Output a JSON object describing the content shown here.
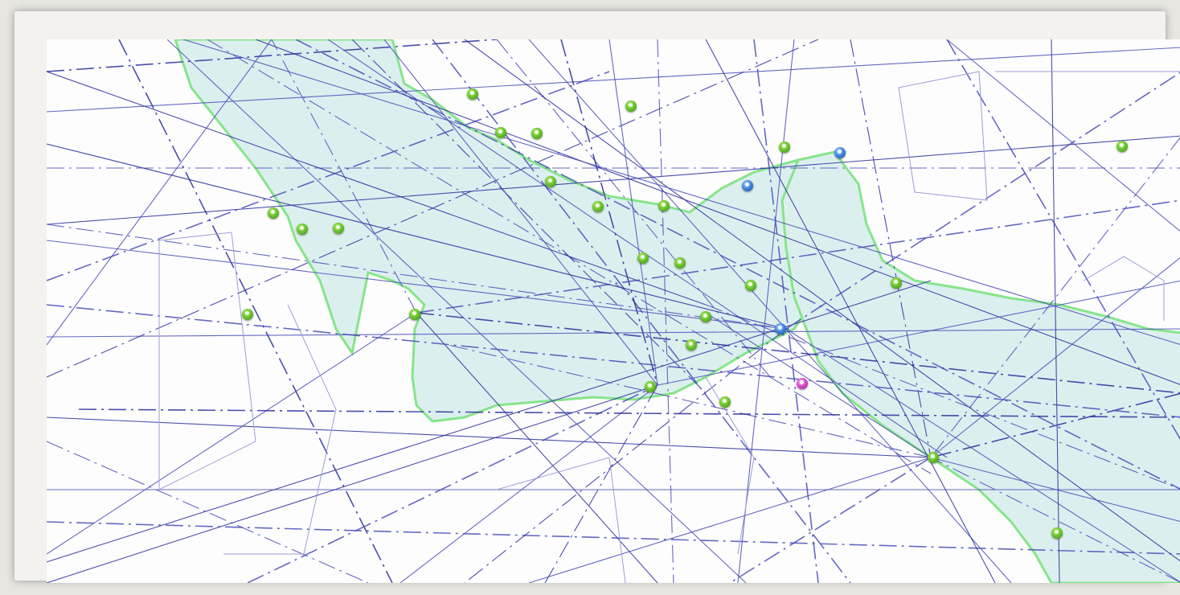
{
  "map": {
    "colors": {
      "land": "#dcefef",
      "coast": "#86e58a",
      "airway": "#4a4fb8",
      "airway_heavy": "#2b2f9e",
      "boundary": "#9a9fd6",
      "marker_green": "#5ab82a",
      "marker_blue": "#3f86e0",
      "marker_magenta": "#d84bd0"
    },
    "markers": [
      {
        "type": "green"
      },
      {
        "type": "green"
      },
      {
        "type": "green"
      },
      {
        "type": "green"
      },
      {
        "type": "green"
      },
      {
        "type": "green"
      },
      {
        "type": "green"
      },
      {
        "type": "green"
      },
      {
        "type": "green"
      },
      {
        "type": "green"
      },
      {
        "type": "green"
      },
      {
        "type": "green"
      },
      {
        "type": "green"
      },
      {
        "type": "green"
      },
      {
        "type": "green"
      },
      {
        "type": "green"
      },
      {
        "type": "green"
      },
      {
        "type": "green"
      },
      {
        "type": "green"
      },
      {
        "type": "green"
      },
      {
        "type": "green"
      },
      {
        "type": "green"
      },
      {
        "type": "green"
      },
      {
        "type": "green"
      },
      {
        "type": "blue"
      },
      {
        "type": "blue"
      },
      {
        "type": "blue"
      },
      {
        "type": "magenta"
      }
    ]
  }
}
